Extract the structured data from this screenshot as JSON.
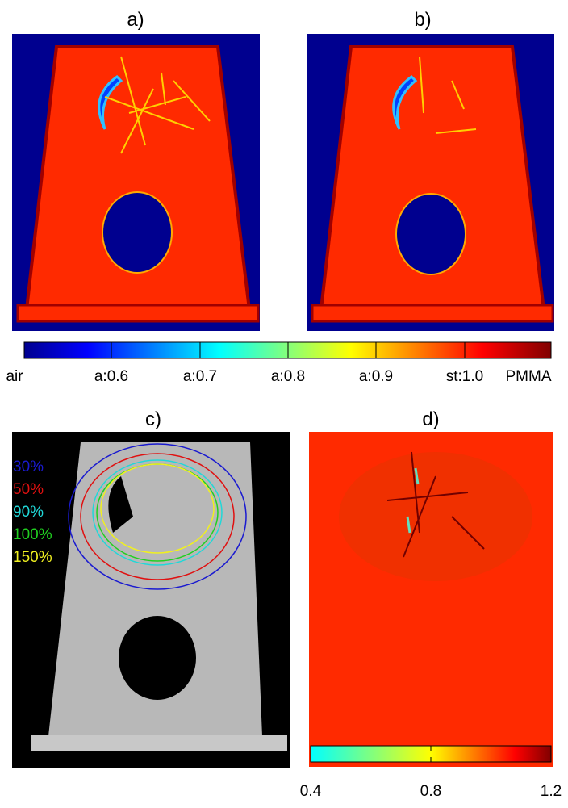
{
  "panels": [
    {
      "label": "a)"
    },
    {
      "label": "b)"
    },
    {
      "label": "c)"
    },
    {
      "label": "d)"
    }
  ],
  "colorbar_top": {
    "labels": [
      "air",
      "a:0.6",
      "a:0.7",
      "a:0.8",
      "a:0.9",
      "st:1.0",
      "PMMA"
    ]
  },
  "isodose_legend": [
    {
      "label": "30%",
      "color": "#1a1ad0"
    },
    {
      "label": "50%",
      "color": "#e01010"
    },
    {
      "label": "90%",
      "color": "#20d8d8"
    },
    {
      "label": "100%",
      "color": "#20d020"
    },
    {
      "label": "150%",
      "color": "#f0f020"
    }
  ],
  "colorbar_bottom": {
    "lim": [
      0.4,
      1.2
    ],
    "ticks": [
      0.4,
      0.8,
      1.2
    ]
  }
}
